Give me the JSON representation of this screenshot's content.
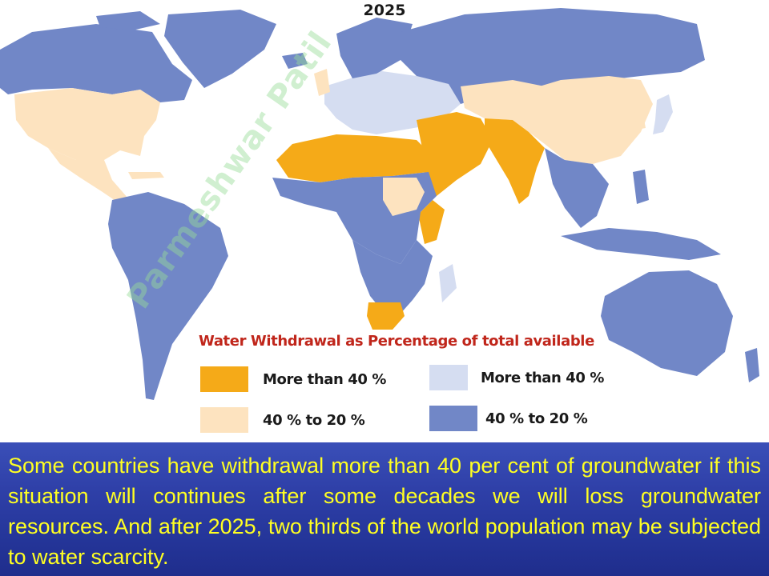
{
  "map": {
    "title": "2025",
    "legend": {
      "title": "Water Withdrawal as Percentage of total available",
      "items": [
        {
          "label": "More  than 40 %",
          "color": "#f5aa18"
        },
        {
          "label": "More  than 40 %",
          "color": "#d5ddf1"
        },
        {
          "label": "40 % to 20 %",
          "color": "#fde3bf"
        },
        {
          "label": "40 % to 20 %",
          "color": "#7187c7"
        }
      ]
    },
    "watermark": "Parmeshwar Patil"
  },
  "caption": {
    "text": "Some countries have withdrawal more than 40 per cent of groundwater if this situation will continues after some decades we will loss groundwater resources. And after 2025, two thirds of the world population may be subjected to water scarcity."
  }
}
